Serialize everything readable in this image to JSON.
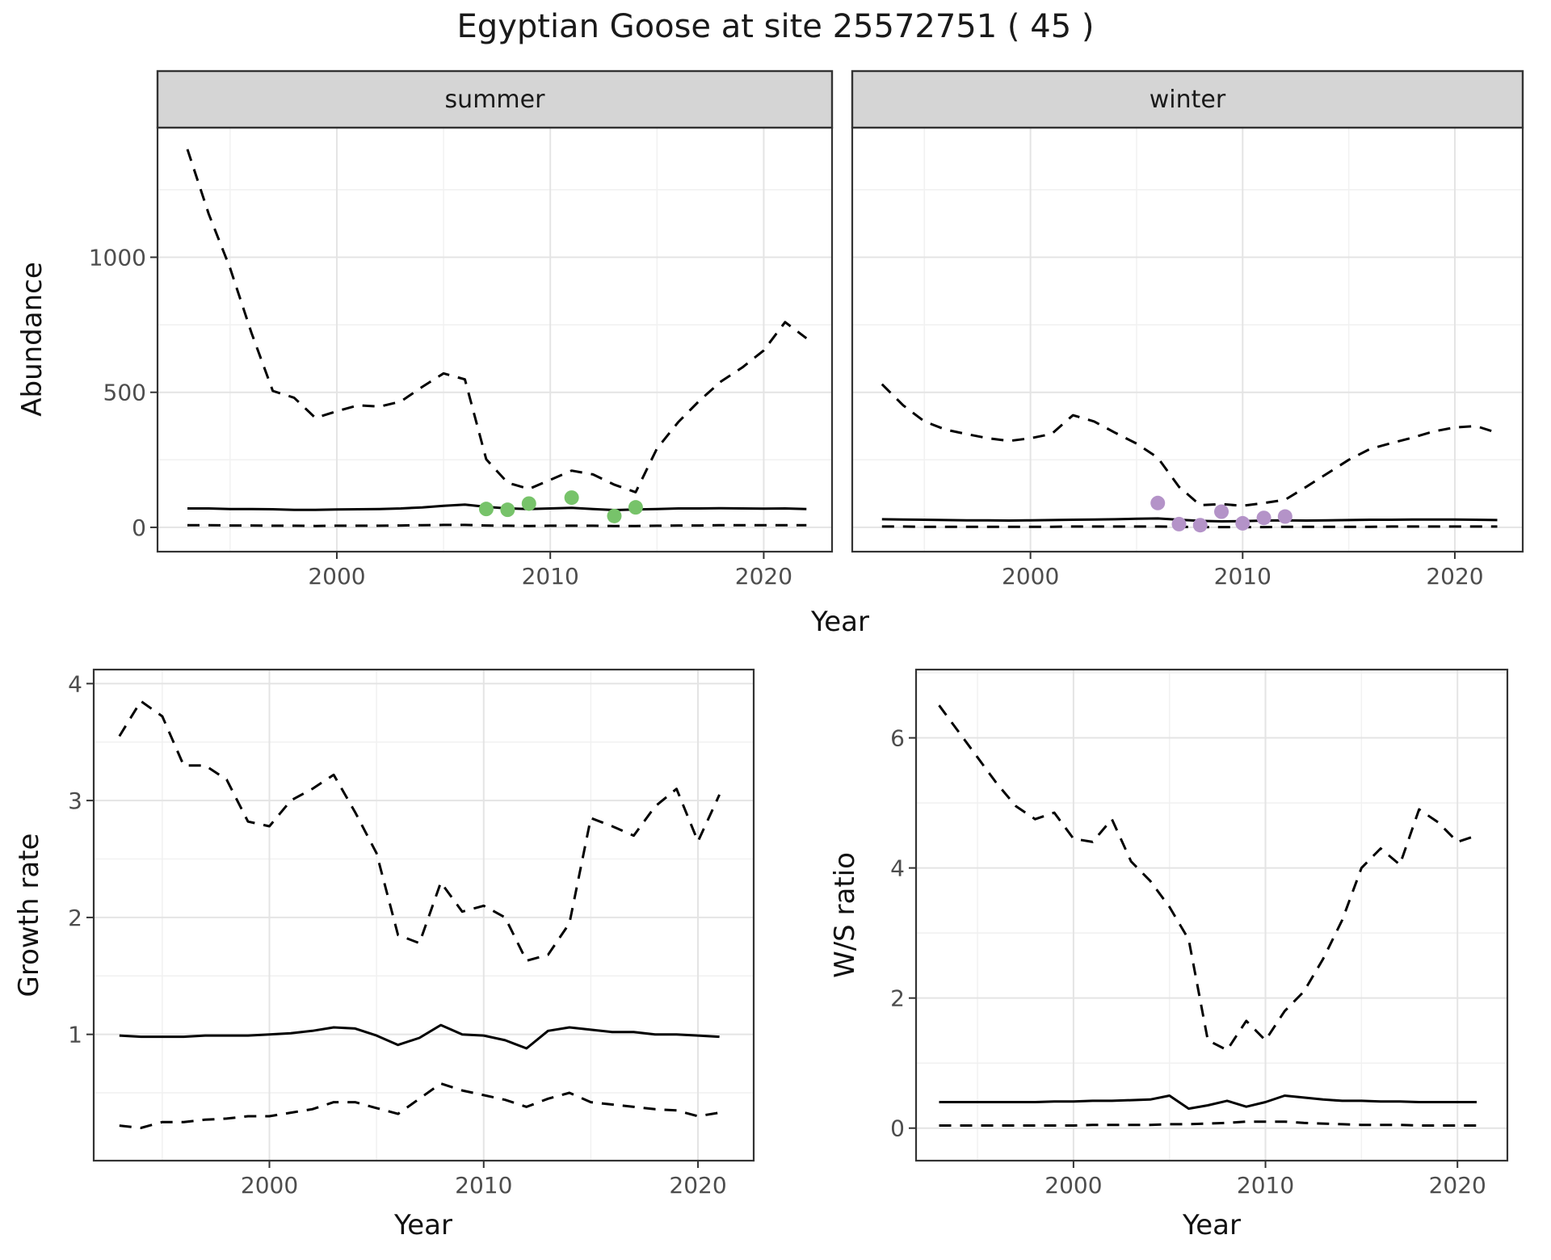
{
  "title": "Egyptian Goose at site 25572751 ( 45 )",
  "axes": {
    "abundance_ylabel": "Abundance",
    "top_xlabel": "Year",
    "growth_ylabel": "Growth rate",
    "growth_xlabel": "Year",
    "ws_ylabel": "W/S ratio",
    "ws_xlabel": "Year"
  },
  "facets": {
    "summer": "summer",
    "winter": "winter"
  },
  "colors": {
    "line": "#000000",
    "summer_points": "#77c36a",
    "winter_points": "#b493c8",
    "strip_bg": "#d5d5d5",
    "strip_border": "#333333",
    "panel_border": "#333333",
    "grid_major": "#e4e4e4",
    "grid_minor": "#f1f1f1",
    "tick_label": "#4d4d4d",
    "tick_mark": "#333333"
  },
  "chart_data": [
    {
      "id": "abundance_summer",
      "type": "line",
      "facet": "summer",
      "ylabel": "Abundance",
      "xlabel": "Year",
      "xlim": [
        1991.6,
        2023.2
      ],
      "ylim": [
        -90,
        1480
      ],
      "xticks": [
        2000,
        2010,
        2020
      ],
      "yticks": [
        0,
        500,
        1000
      ],
      "x": [
        1993,
        1994,
        1995,
        1996,
        1997,
        1998,
        1999,
        2000,
        2001,
        2002,
        2003,
        2004,
        2005,
        2006,
        2007,
        2008,
        2009,
        2010,
        2011,
        2012,
        2013,
        2014,
        2015,
        2016,
        2017,
        2018,
        2019,
        2020,
        2021,
        2022
      ],
      "series": [
        {
          "name": "upper_ci",
          "style": "dashed",
          "y": [
            1400,
            1160,
            960,
            720,
            505,
            480,
            405,
            430,
            452,
            447,
            466,
            520,
            570,
            548,
            252,
            165,
            142,
            176,
            210,
            196,
            158,
            130,
            292,
            390,
            470,
            540,
            592,
            655,
            760,
            700
          ]
        },
        {
          "name": "median",
          "style": "solid",
          "y": [
            70,
            70,
            68,
            68,
            67,
            65,
            65,
            66,
            67,
            68,
            70,
            74,
            80,
            84,
            76,
            70,
            68,
            70,
            72,
            68,
            64,
            66,
            68,
            70,
            70,
            71,
            70,
            69,
            70,
            68
          ]
        },
        {
          "name": "lower_ci",
          "style": "dashed",
          "y": [
            8,
            8,
            7,
            7,
            6,
            6,
            5,
            6,
            6,
            6,
            7,
            8,
            9,
            9,
            7,
            6,
            5,
            6,
            6,
            6,
            5,
            5,
            6,
            7,
            7,
            8,
            8,
            8,
            8,
            8
          ]
        }
      ],
      "points": {
        "name": "observed_counts_summer",
        "color_key": "summer_points",
        "x": [
          2007,
          2008,
          2009,
          2011,
          2013,
          2014
        ],
        "y": [
          68,
          65,
          88,
          110,
          42,
          74
        ]
      }
    },
    {
      "id": "abundance_winter",
      "type": "line",
      "facet": "winter",
      "ylabel": "Abundance",
      "xlabel": "Year",
      "xlim": [
        1991.6,
        2023.2
      ],
      "ylim": [
        -90,
        1480
      ],
      "xticks": [
        2000,
        2010,
        2020
      ],
      "yticks": [
        0,
        500,
        1000
      ],
      "x": [
        1993,
        1994,
        1995,
        1996,
        1997,
        1998,
        1999,
        2000,
        2001,
        2002,
        2003,
        2004,
        2005,
        2006,
        2007,
        2008,
        2009,
        2010,
        2011,
        2012,
        2013,
        2014,
        2015,
        2016,
        2017,
        2018,
        2019,
        2020,
        2021,
        2022
      ],
      "series": [
        {
          "name": "upper_ci",
          "style": "dashed",
          "y": [
            530,
            452,
            392,
            362,
            345,
            330,
            320,
            330,
            346,
            415,
            392,
            350,
            310,
            258,
            150,
            82,
            86,
            80,
            90,
            102,
            150,
            200,
            250,
            290,
            312,
            332,
            355,
            370,
            375,
            350
          ]
        },
        {
          "name": "median",
          "style": "solid",
          "y": [
            30,
            29,
            28,
            27,
            26,
            26,
            25,
            26,
            27,
            28,
            29,
            30,
            32,
            33,
            28,
            24,
            22,
            23,
            25,
            26,
            25,
            26,
            27,
            28,
            28,
            29,
            29,
            29,
            28,
            27
          ]
        },
        {
          "name": "lower_ci",
          "style": "dashed",
          "y": [
            3,
            3,
            2,
            2,
            2,
            2,
            2,
            2,
            2,
            3,
            3,
            3,
            3,
            3,
            2,
            1,
            1,
            1,
            1,
            2,
            2,
            2,
            2,
            2,
            3,
            3,
            3,
            3,
            3,
            3
          ]
        }
      ],
      "points": {
        "name": "observed_counts_winter",
        "color_key": "winter_points",
        "x": [
          2006,
          2007,
          2008,
          2009,
          2010,
          2011,
          2012
        ],
        "y": [
          90,
          12,
          8,
          58,
          15,
          35,
          40
        ]
      }
    },
    {
      "id": "growth_rate",
      "type": "line",
      "ylabel": "Growth rate",
      "xlabel": "Year",
      "xlim": [
        1991.8,
        2022.6
      ],
      "ylim": [
        -0.08,
        4.12
      ],
      "xticks": [
        2000,
        2010,
        2020
      ],
      "yticks": [
        1,
        2,
        3,
        4
      ],
      "x": [
        1993,
        1994,
        1995,
        1996,
        1997,
        1998,
        1999,
        2000,
        2001,
        2002,
        2003,
        2004,
        2005,
        2006,
        2007,
        2008,
        2009,
        2010,
        2011,
        2012,
        2013,
        2014,
        2015,
        2016,
        2017,
        2018,
        2019,
        2020,
        2021
      ],
      "series": [
        {
          "name": "upper_ci",
          "style": "dashed",
          "y": [
            3.55,
            3.85,
            3.72,
            3.3,
            3.3,
            3.18,
            2.82,
            2.78,
            3.0,
            3.1,
            3.22,
            2.9,
            2.55,
            1.85,
            1.78,
            2.3,
            2.05,
            2.1,
            2.0,
            1.63,
            1.68,
            1.95,
            2.85,
            2.78,
            2.7,
            2.95,
            3.1,
            2.65,
            3.05
          ]
        },
        {
          "name": "median",
          "style": "solid",
          "y": [
            0.99,
            0.98,
            0.98,
            0.98,
            0.99,
            0.99,
            0.99,
            1.0,
            1.01,
            1.03,
            1.06,
            1.05,
            0.99,
            0.91,
            0.97,
            1.08,
            1.0,
            0.99,
            0.95,
            0.88,
            1.03,
            1.06,
            1.04,
            1.02,
            1.02,
            1.0,
            1.0,
            0.99,
            0.98
          ]
        },
        {
          "name": "lower_ci",
          "style": "dashed",
          "y": [
            0.22,
            0.2,
            0.25,
            0.25,
            0.27,
            0.28,
            0.3,
            0.3,
            0.33,
            0.36,
            0.42,
            0.42,
            0.37,
            0.32,
            0.45,
            0.58,
            0.52,
            0.48,
            0.44,
            0.38,
            0.45,
            0.5,
            0.42,
            0.4,
            0.38,
            0.36,
            0.35,
            0.3,
            0.33
          ]
        }
      ]
    },
    {
      "id": "ws_ratio",
      "type": "line",
      "ylabel": "W/S ratio",
      "xlabel": "Year",
      "xlim": [
        1991.8,
        2022.6
      ],
      "ylim": [
        -0.5,
        7.05
      ],
      "xticks": [
        2000,
        2010,
        2020
      ],
      "yticks": [
        0,
        2,
        4,
        6
      ],
      "x": [
        1993,
        1994,
        1995,
        1996,
        1997,
        1998,
        1999,
        2000,
        2001,
        2002,
        2003,
        2004,
        2005,
        2006,
        2007,
        2008,
        2009,
        2010,
        2011,
        2012,
        2013,
        2014,
        2015,
        2016,
        2017,
        2018,
        2019,
        2020,
        2021
      ],
      "series": [
        {
          "name": "upper_ci",
          "style": "dashed",
          "y": [
            6.5,
            6.1,
            5.7,
            5.3,
            4.95,
            4.75,
            4.85,
            4.45,
            4.4,
            4.75,
            4.1,
            3.8,
            3.4,
            2.9,
            1.35,
            1.2,
            1.65,
            1.35,
            1.8,
            2.1,
            2.6,
            3.2,
            4.0,
            4.3,
            4.05,
            4.9,
            4.7,
            4.4,
            4.5
          ]
        },
        {
          "name": "median",
          "style": "solid",
          "y": [
            0.4,
            0.4,
            0.4,
            0.4,
            0.4,
            0.4,
            0.41,
            0.41,
            0.42,
            0.42,
            0.43,
            0.44,
            0.5,
            0.3,
            0.35,
            0.42,
            0.33,
            0.4,
            0.5,
            0.47,
            0.44,
            0.42,
            0.42,
            0.41,
            0.41,
            0.4,
            0.4,
            0.4,
            0.4
          ]
        },
        {
          "name": "lower_ci",
          "style": "dashed",
          "y": [
            0.04,
            0.04,
            0.04,
            0.04,
            0.04,
            0.04,
            0.04,
            0.04,
            0.05,
            0.05,
            0.05,
            0.05,
            0.06,
            0.06,
            0.07,
            0.08,
            0.1,
            0.1,
            0.1,
            0.08,
            0.07,
            0.06,
            0.05,
            0.05,
            0.05,
            0.04,
            0.04,
            0.04,
            0.04
          ]
        }
      ]
    }
  ]
}
